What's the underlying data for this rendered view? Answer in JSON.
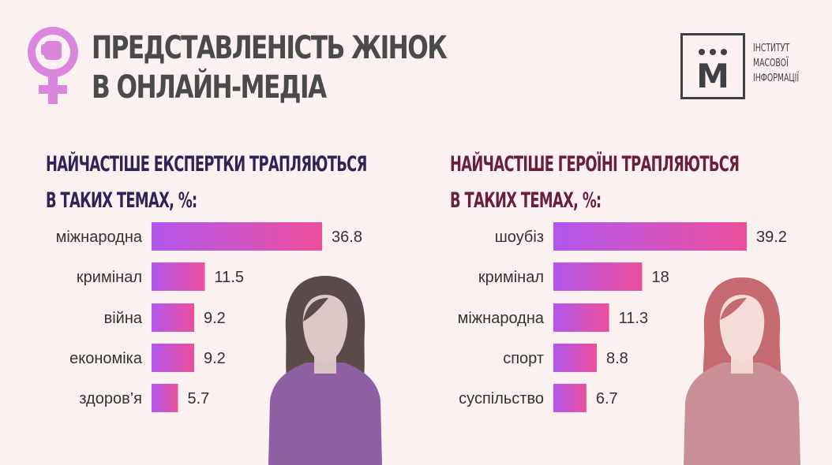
{
  "header": {
    "title_line1": "ПРЕДСТАВЛЕНІСТЬ ЖІНОК",
    "title_line2": "В ОНЛАЙН-МЕДІА",
    "symbol_icon": "female-fist-icon"
  },
  "logo": {
    "letter": "М",
    "line1": "ІНСТИТУТ",
    "line2": "МАСОВОЇ",
    "line3": "ІНФОРМАЦІЇ"
  },
  "colors": {
    "bar_start": "#b257ee",
    "bar_end": "#ec4f9b",
    "left_heading": "#2f2457",
    "right_heading": "#6b1f3c",
    "left_figure": "#8d5fa3",
    "right_figure": "#c98e96"
  },
  "chart_data": [
    {
      "type": "bar",
      "orientation": "horizontal",
      "title": "НАЙЧАСТІШЕ ЕКСПЕРТКИ ТРАПЛЯЮТЬСЯ В ТАКИХ ТЕМАХ, %:",
      "title_line1": "НАЙЧАСТІШЕ ЕКСПЕРТКИ ТРАПЛЯЮТЬСЯ",
      "title_line2": "В ТАКИХ ТЕМАХ, %:",
      "categories": [
        "міжнародна",
        "кримінал",
        "війна",
        "економіка",
        "здоров’я"
      ],
      "values": [
        36.8,
        11.5,
        9.2,
        9.2,
        5.7
      ],
      "value_labels": [
        "36.8",
        "11.5",
        "9.2",
        "9.2",
        "5.7"
      ]
    },
    {
      "type": "bar",
      "orientation": "horizontal",
      "title": "НАЙЧАСТІШЕ ГЕРОЇНІ ТРАПЛЯЮТЬСЯ В ТАКИХ ТЕМАХ, %:",
      "title_line1": "НАЙЧАСТІШЕ ГЕРОЇНІ ТРАПЛЯЮТЬСЯ",
      "title_line2": "В ТАКИХ ТЕМАХ, %:",
      "categories": [
        "шоубіз",
        "кримінал",
        "міжнародна",
        "спорт",
        "суспільство"
      ],
      "values": [
        39.2,
        18,
        11.3,
        8.8,
        6.7
      ],
      "value_labels": [
        "39.2",
        "18",
        "11.3",
        "8.8",
        "6.7"
      ]
    }
  ]
}
